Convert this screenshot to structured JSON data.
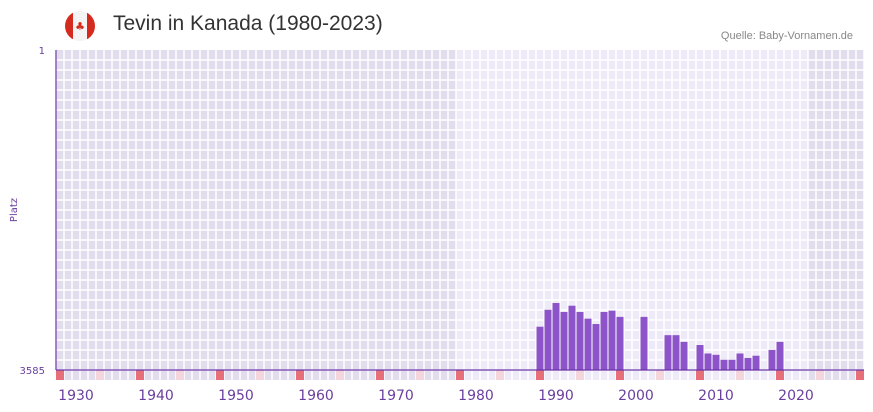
{
  "header": {
    "title": "Tevin in Kanada (1980-2023)",
    "source": "Quelle: Baby-Vornamen.de",
    "flag_icon": "canada-flag-icon"
  },
  "chart_data": {
    "type": "bar",
    "title": "Tevin in Kanada (1980-2023)",
    "xlabel": "",
    "ylabel": "Platz",
    "ylim": [
      1,
      3585
    ],
    "y_inverted": true,
    "y_ticks": [
      "1",
      "3585"
    ],
    "xlim": [
      1928,
      2028
    ],
    "x_ticks": [
      1930,
      1940,
      1950,
      1960,
      1970,
      1980,
      1990,
      2000,
      2010,
      2020
    ],
    "highlight_range": [
      1978,
      2021
    ],
    "grid": true,
    "colors": {
      "bar": "#8c54c8",
      "axis": "#6a35a8",
      "tick_strong": "#e5707a",
      "tick_light": "#f5d5dc",
      "bg_dark": "#e2ddec",
      "bg_light": "#efeaf8"
    },
    "x": [
      1988,
      1989,
      1990,
      1991,
      1992,
      1993,
      1994,
      1995,
      1996,
      1997,
      1998,
      2001,
      2004,
      2005,
      2006,
      2008,
      2009,
      2010,
      2011,
      2012,
      2013,
      2014,
      2015,
      2017,
      2018
    ],
    "values": [
      3100,
      2910,
      2835,
      2935,
      2865,
      2935,
      3010,
      3070,
      2935,
      2920,
      2990,
      2990,
      3195,
      3195,
      3270,
      3305,
      3400,
      3415,
      3470,
      3470,
      3400,
      3450,
      3425,
      3360,
      3270
    ]
  }
}
